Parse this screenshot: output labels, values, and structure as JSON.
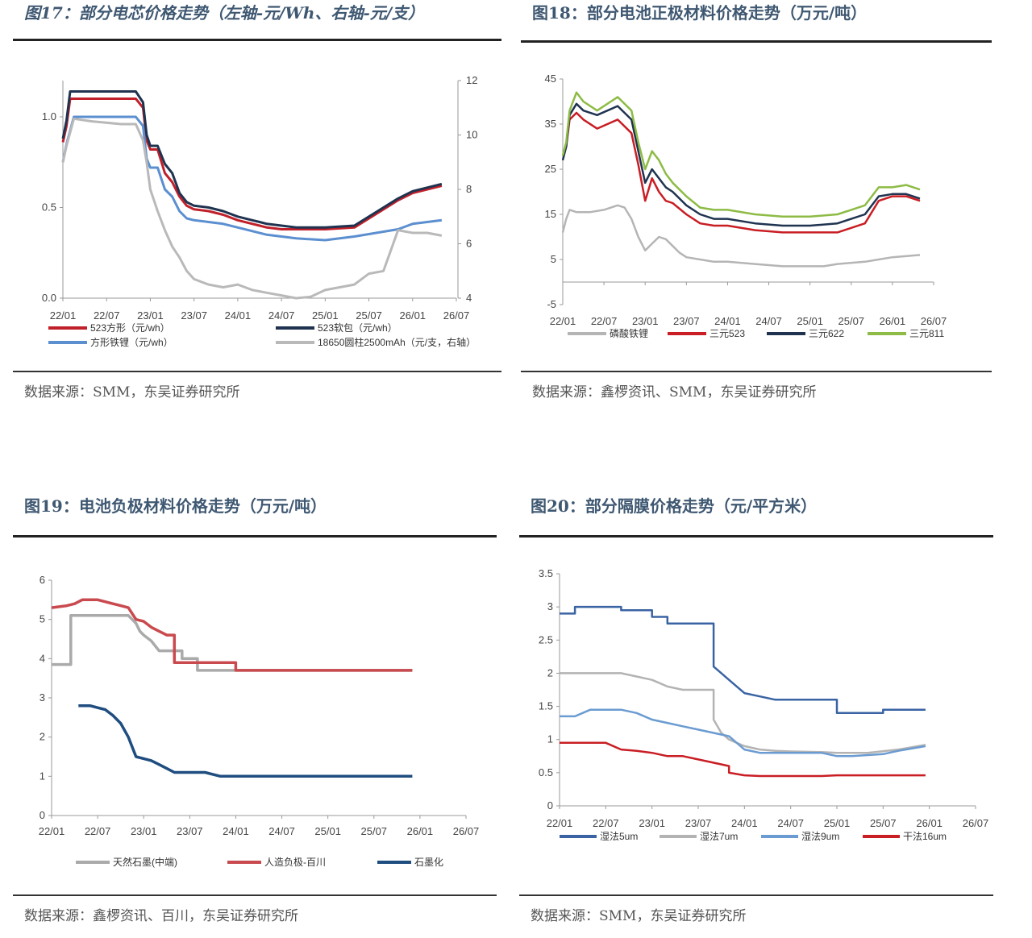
{
  "figures": [
    {
      "title": "图17：部分电芯价格走势（左轴-元/Wh、右轴-元/支）",
      "source": "数据来源：SMM，东吴证券研究所",
      "chart_data": {
        "type": "line",
        "x_ticks": [
          "22/01",
          "22/07",
          "23/01",
          "23/07",
          "24/01",
          "24/07",
          "25/01",
          "25/07",
          "26/01",
          "26/07"
        ],
        "y_left_ticks": [
          "0.0",
          "0.5",
          "1.0"
        ],
        "ylim_left": [
          0,
          1.2
        ],
        "y_right_ticks": [
          "4",
          "6",
          "8",
          "10",
          "12"
        ],
        "ylim_right": [
          4,
          12
        ],
        "legend_position": "bottom",
        "series": [
          {
            "name": "523方形（元/wh）",
            "color": "#c0202a",
            "axis": "left",
            "x": [
              0,
              0.5,
              1,
              4,
              8,
              10,
              11,
              11.5,
              12,
              13,
              14,
              15,
              16,
              17,
              18,
              20,
              22,
              24,
              26,
              27,
              28,
              30,
              32,
              36,
              40,
              46,
              48,
              52
            ],
            "y": [
              0.86,
              0.95,
              1.1,
              1.1,
              1.1,
              1.1,
              1.05,
              0.87,
              0.82,
              0.82,
              0.69,
              0.64,
              0.56,
              0.51,
              0.49,
              0.48,
              0.46,
              0.43,
              0.41,
              0.4,
              0.39,
              0.38,
              0.38,
              0.38,
              0.39,
              0.54,
              0.58,
              0.62
            ]
          },
          {
            "name": "523软包（元/wh）",
            "color": "#1f3350",
            "axis": "left",
            "x": [
              0,
              0.5,
              1,
              4,
              8,
              10,
              11,
              11.5,
              12,
              13,
              14,
              15,
              16,
              17,
              18,
              20,
              22,
              24,
              26,
              27,
              28,
              30,
              32,
              36,
              40,
              46,
              48,
              52
            ],
            "y": [
              0.88,
              0.98,
              1.14,
              1.14,
              1.14,
              1.14,
              1.08,
              0.9,
              0.84,
              0.84,
              0.74,
              0.69,
              0.58,
              0.53,
              0.51,
              0.5,
              0.48,
              0.45,
              0.43,
              0.42,
              0.41,
              0.4,
              0.39,
              0.39,
              0.4,
              0.55,
              0.59,
              0.63
            ]
          },
          {
            "name": "方形铁锂（元/wh）",
            "color": "#5b8fd0",
            "axis": "left",
            "x": [
              0,
              0.5,
              1.5,
              4,
              8,
              10,
              11,
              11.5,
              12,
              13,
              14,
              15,
              16,
              17,
              18,
              20,
              22,
              24,
              26,
              28,
              30,
              32,
              36,
              40,
              46,
              48,
              52
            ],
            "y": [
              0.75,
              0.85,
              1.0,
              1.0,
              1.0,
              1.0,
              0.95,
              0.77,
              0.72,
              0.72,
              0.6,
              0.56,
              0.48,
              0.44,
              0.43,
              0.42,
              0.41,
              0.39,
              0.37,
              0.35,
              0.34,
              0.33,
              0.32,
              0.34,
              0.38,
              0.41,
              0.43
            ]
          },
          {
            "name": "18650圆柱2500mAh（元/支，右轴）",
            "color": "#b9b9b9",
            "axis": "right",
            "x": [
              0,
              0.5,
              1.5,
              4,
              8,
              10,
              11,
              11.5,
              12,
              13,
              14,
              15,
              16,
              17,
              18,
              20,
              22,
              24,
              26,
              28,
              30,
              32,
              34,
              36,
              40,
              42,
              44,
              46,
              48,
              50,
              52
            ],
            "y": [
              9.0,
              9.6,
              10.6,
              10.5,
              10.4,
              10.4,
              9.8,
              9.0,
              8.0,
              7.2,
              6.5,
              5.9,
              5.5,
              5.0,
              4.7,
              4.5,
              4.4,
              4.5,
              4.3,
              4.2,
              4.1,
              4.0,
              4.05,
              4.3,
              4.5,
              4.9,
              5.0,
              6.5,
              6.4,
              6.4,
              6.3
            ]
          }
        ]
      }
    },
    {
      "title": "图18：部分电池正极材料价格走势（万元/吨）",
      "source": "数据来源：鑫椤资讯、SMM，东吴证券研究所",
      "chart_data": {
        "type": "line",
        "x_ticks": [
          "22/01",
          "22/07",
          "23/01",
          "23/07",
          "24/01",
          "24/07",
          "25/01",
          "25/07",
          "26/01",
          "26/07"
        ],
        "y_ticks": [
          "-5",
          "5",
          "15",
          "25",
          "35",
          "45"
        ],
        "ylim": [
          -5,
          45
        ],
        "legend_position": "bottom",
        "series": [
          {
            "name": "磷酸铁锂",
            "color": "#b5b5b5",
            "x": [
              0,
              0.5,
              1,
              2,
              4,
              6,
              8,
              9,
              10,
              11,
              12,
              13,
              14,
              15,
              16,
              17,
              18,
              20,
              22,
              24,
              28,
              32,
              36,
              38,
              40,
              44,
              46,
              48,
              52
            ],
            "y": [
              11,
              14,
              16,
              15.5,
              15.5,
              16,
              17,
              16.5,
              14,
              10,
              7,
              8.5,
              10,
              9.5,
              8,
              6.5,
              5.5,
              5,
              4.5,
              4.5,
              4,
              3.5,
              3.5,
              3.5,
              4,
              4.5,
              5,
              5.5,
              6
            ]
          },
          {
            "name": "三元523",
            "color": "#c81e24",
            "x": [
              0,
              0.5,
              1,
              2,
              3,
              5,
              8,
              10,
              11,
              12,
              13,
              14,
              15,
              16,
              18,
              20,
              22,
              24,
              28,
              32,
              36,
              40,
              42,
              44,
              46,
              48,
              50,
              52
            ],
            "y": [
              28,
              30,
              36,
              37.5,
              36,
              34,
              36,
              33,
              26,
              18,
              23,
              20,
              18,
              17.5,
              15,
              13,
              12.5,
              12.5,
              11.5,
              11,
              11,
              11,
              12,
              13,
              18,
              19,
              19,
              18
            ]
          },
          {
            "name": "三元622",
            "color": "#1f3350",
            "x": [
              0,
              0.5,
              1,
              2,
              3,
              5,
              8,
              10,
              11,
              12,
              13,
              14,
              15,
              16,
              18,
              20,
              22,
              24,
              28,
              32,
              36,
              40,
              42,
              44,
              46,
              48,
              50,
              52
            ],
            "y": [
              27,
              30,
              37,
              39.5,
              38,
              37,
              39,
              36,
              29,
              22,
              25,
              23,
              21,
              20,
              17,
              15,
              14,
              14,
              13,
              12.5,
              12.5,
              13,
              14,
              15,
              19,
              19.5,
              19.5,
              18.5
            ]
          },
          {
            "name": "三元811",
            "color": "#8dbb45",
            "x": [
              0,
              0.5,
              1,
              2,
              3,
              5,
              8,
              10,
              11,
              12,
              13,
              14,
              15,
              16,
              18,
              20,
              22,
              24,
              28,
              32,
              36,
              40,
              42,
              44,
              46,
              48,
              50,
              52
            ],
            "y": [
              28,
              31,
              38,
              42,
              40,
              38,
              41,
              38,
              31,
              25,
              29,
              27,
              24,
              22,
              19,
              16.5,
              16,
              16,
              15,
              14.5,
              14.5,
              15,
              16,
              17,
              21,
              21,
              21.5,
              20.5
            ]
          }
        ]
      }
    },
    {
      "title": "图19：电池负极材料价格走势（万元/吨）",
      "source": "数据来源：鑫椤资讯、百川，东吴证券研究所",
      "chart_data": {
        "type": "line",
        "x_ticks": [
          "22/01",
          "22/07",
          "23/01",
          "23/07",
          "24/01",
          "24/07",
          "25/01",
          "25/07",
          "26/01",
          "26/07"
        ],
        "y_ticks": [
          "0",
          "1",
          "2",
          "3",
          "4",
          "5",
          "6"
        ],
        "ylim": [
          0,
          6
        ],
        "legend_position": "bottom",
        "series": [
          {
            "name": "天然石墨(中端)",
            "color": "#aaaaaa",
            "x": [
              0,
              2.5,
              2.5,
              4,
              8,
              10,
              11,
              11.5,
              12,
              13,
              14,
              16,
              17,
              17,
              19,
              19,
              24,
              24,
              47
            ],
            "y": [
              3.85,
              3.85,
              5.1,
              5.1,
              5.1,
              5.1,
              4.9,
              4.7,
              4.6,
              4.45,
              4.2,
              4.2,
              4.2,
              4.0,
              4.0,
              3.7,
              3.7,
              3.7,
              3.7
            ]
          },
          {
            "name": "人造负极-百川",
            "color": "#c94a4e",
            "x": [
              0,
              2,
              3,
              4,
              6,
              8,
              9,
              10,
              11,
              12,
              13,
              14,
              15,
              16,
              16,
              20,
              24,
              24,
              47
            ],
            "y": [
              5.3,
              5.35,
              5.4,
              5.5,
              5.5,
              5.4,
              5.35,
              5.3,
              5.0,
              4.95,
              4.8,
              4.7,
              4.6,
              4.6,
              3.9,
              3.9,
              3.9,
              3.7,
              3.7
            ]
          },
          {
            "name": "石墨化",
            "color": "#1f4d80",
            "x": [
              3.5,
              4,
              5,
              6,
              7,
              8,
              9,
              10,
              11,
              12,
              13,
              14,
              15,
              16,
              18,
              20,
              21,
              22,
              24,
              47
            ],
            "y": [
              2.8,
              2.8,
              2.8,
              2.75,
              2.7,
              2.55,
              2.35,
              2.0,
              1.5,
              1.45,
              1.4,
              1.3,
              1.2,
              1.1,
              1.1,
              1.1,
              1.05,
              1.0,
              1.0,
              1.0
            ]
          }
        ]
      }
    },
    {
      "title": "图20：部分隔膜价格走势（元/平方米）",
      "source": "数据来源：SMM，东吴证券研究所",
      "chart_data": {
        "type": "line",
        "x_ticks": [
          "22/01",
          "22/07",
          "23/01",
          "23/07",
          "24/01",
          "24/07",
          "25/01",
          "25/07",
          "26/01",
          "26/07"
        ],
        "y_ticks": [
          "0",
          "0.5",
          "1",
          "1.5",
          "2",
          "2.5",
          "3",
          "3.5"
        ],
        "ylim": [
          0,
          3.5
        ],
        "legend_position": "bottom",
        "series": [
          {
            "name": "湿法5um",
            "color": "#3a63a3",
            "x": [
              0,
              2,
              2,
              8,
              8,
              12,
              12,
              14,
              14,
              20,
              20,
              20.5,
              21,
              22,
              23,
              24,
              26,
              28,
              32,
              36,
              36,
              42,
              42,
              47.5
            ],
            "y": [
              2.9,
              2.9,
              3.0,
              3.0,
              2.95,
              2.95,
              2.85,
              2.85,
              2.75,
              2.75,
              2.1,
              2.05,
              2.0,
              1.9,
              1.8,
              1.7,
              1.65,
              1.6,
              1.6,
              1.6,
              1.4,
              1.4,
              1.45,
              1.45
            ]
          },
          {
            "name": "湿法7um",
            "color": "#b3b3b3",
            "x": [
              0,
              8,
              10,
              12,
              14,
              16,
              20,
              20,
              21,
              22,
              24,
              26,
              28,
              30,
              34,
              36,
              40,
              44,
              47.5
            ],
            "y": [
              2.0,
              2.0,
              1.95,
              1.9,
              1.8,
              1.75,
              1.75,
              1.3,
              1.1,
              1.0,
              0.9,
              0.85,
              0.83,
              0.82,
              0.81,
              0.8,
              0.8,
              0.85,
              0.92
            ]
          },
          {
            "name": "湿法9um",
            "color": "#6a9bd1",
            "x": [
              0,
              2,
              4,
              8,
              10,
              12,
              14,
              16,
              18,
              20,
              22,
              24,
              26,
              30,
              34,
              36,
              38,
              42,
              44,
              47.5
            ],
            "y": [
              1.35,
              1.35,
              1.45,
              1.45,
              1.4,
              1.3,
              1.25,
              1.2,
              1.15,
              1.1,
              1.05,
              0.85,
              0.8,
              0.8,
              0.8,
              0.75,
              0.75,
              0.78,
              0.83,
              0.9
            ]
          },
          {
            "name": "干法16um",
            "color": "#c81e24",
            "x": [
              0,
              2,
              4,
              6,
              8,
              10,
              12,
              14,
              16,
              18,
              20,
              22,
              22,
              24,
              26,
              30,
              34,
              36,
              40,
              47.5
            ],
            "y": [
              0.95,
              0.95,
              0.95,
              0.95,
              0.85,
              0.83,
              0.8,
              0.75,
              0.75,
              0.7,
              0.65,
              0.6,
              0.5,
              0.46,
              0.45,
              0.45,
              0.45,
              0.46,
              0.46,
              0.46
            ]
          }
        ]
      }
    }
  ]
}
